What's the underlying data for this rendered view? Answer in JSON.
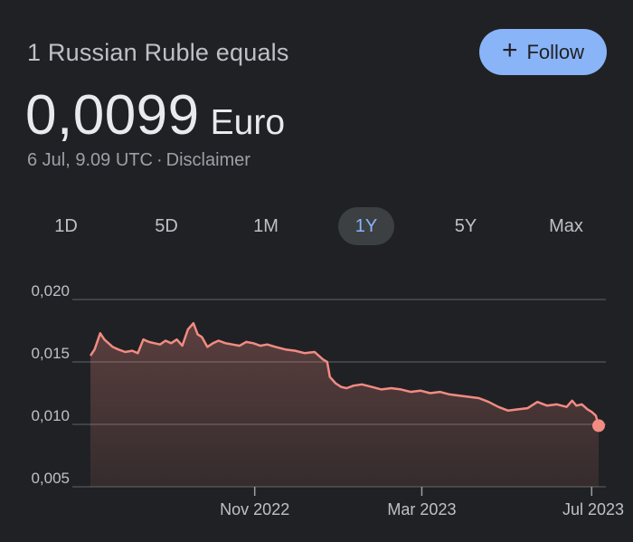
{
  "header": {
    "subtitle": "1 Russian Ruble equals",
    "rate_value": "0,0099",
    "rate_currency": "Euro",
    "timestamp": "6 Jul, 9.09 UTC",
    "separator": "·",
    "disclaimer": "Disclaimer"
  },
  "follow_button": {
    "icon": "plus-icon",
    "label": "Follow"
  },
  "range_tabs": [
    {
      "label": "1D",
      "active": false
    },
    {
      "label": "5D",
      "active": false
    },
    {
      "label": "1M",
      "active": false
    },
    {
      "label": "1Y",
      "active": true
    },
    {
      "label": "5Y",
      "active": false
    },
    {
      "label": "Max",
      "active": false
    }
  ],
  "colors": {
    "background": "#202124",
    "accent": "#8ab4f8",
    "series_line": "#f28b82"
  },
  "chart_data": {
    "type": "area",
    "ytick_labels": [
      "0,020",
      "0,015",
      "0,010",
      "0,005"
    ],
    "yticks": [
      0.02,
      0.015,
      0.01,
      0.005
    ],
    "ylim": [
      0.005,
      0.02
    ],
    "xlim": [
      "2022-07-06",
      "2023-07-06"
    ],
    "xtick_labels": [
      "Nov 2022",
      "Mar 2023",
      "Jul 2023"
    ],
    "xticks": [
      "2022-11-01",
      "2023-03-01",
      "2023-07-01"
    ],
    "grid": true,
    "series": [
      {
        "x": [
          "2022-07-06",
          "2022-07-09",
          "2022-07-13",
          "2022-07-16",
          "2022-07-19",
          "2022-07-22",
          "2022-07-26",
          "2022-07-31",
          "2022-08-05",
          "2022-08-09",
          "2022-08-13",
          "2022-08-17",
          "2022-08-21",
          "2022-08-25",
          "2022-08-29",
          "2022-09-02",
          "2022-09-06",
          "2022-09-10",
          "2022-09-14",
          "2022-09-18",
          "2022-09-21",
          "2022-09-24",
          "2022-09-28",
          "2022-10-02",
          "2022-10-06",
          "2022-10-11",
          "2022-10-16",
          "2022-10-21",
          "2022-10-26",
          "2022-10-31",
          "2022-11-05",
          "2022-11-10",
          "2022-11-16",
          "2022-11-23",
          "2022-11-30",
          "2022-12-07",
          "2022-12-14",
          "2022-12-20",
          "2022-12-23",
          "2022-12-25",
          "2022-12-29",
          "2023-01-02",
          "2023-01-06",
          "2023-01-11",
          "2023-01-17",
          "2023-01-24",
          "2023-01-31",
          "2023-02-07",
          "2023-02-14",
          "2023-02-21",
          "2023-02-28",
          "2023-03-07",
          "2023-03-14",
          "2023-03-21",
          "2023-03-28",
          "2023-04-04",
          "2023-04-11",
          "2023-04-18",
          "2023-04-25",
          "2023-05-02",
          "2023-05-09",
          "2023-05-16",
          "2023-05-23",
          "2023-05-30",
          "2023-06-06",
          "2023-06-13",
          "2023-06-17",
          "2023-06-20",
          "2023-06-24",
          "2023-06-28",
          "2023-07-01",
          "2023-07-04",
          "2023-07-06"
        ],
        "y": [
          0.0155,
          0.016,
          0.0173,
          0.0168,
          0.0165,
          0.0162,
          0.016,
          0.0158,
          0.0159,
          0.0157,
          0.0168,
          0.0166,
          0.0165,
          0.0164,
          0.0167,
          0.0165,
          0.0168,
          0.0163,
          0.0176,
          0.0181,
          0.0172,
          0.017,
          0.0162,
          0.0165,
          0.0167,
          0.0165,
          0.0164,
          0.0163,
          0.0166,
          0.0165,
          0.0163,
          0.0164,
          0.0162,
          0.016,
          0.0159,
          0.0157,
          0.0158,
          0.0152,
          0.015,
          0.0138,
          0.0133,
          0.013,
          0.0129,
          0.0131,
          0.0132,
          0.013,
          0.0128,
          0.0129,
          0.0128,
          0.0126,
          0.0127,
          0.0125,
          0.0126,
          0.0124,
          0.0123,
          0.0122,
          0.0121,
          0.0118,
          0.0114,
          0.0111,
          0.0112,
          0.0113,
          0.0118,
          0.0115,
          0.0116,
          0.0114,
          0.0119,
          0.0115,
          0.0116,
          0.0112,
          0.011,
          0.0107,
          0.0099
        ]
      }
    ]
  }
}
